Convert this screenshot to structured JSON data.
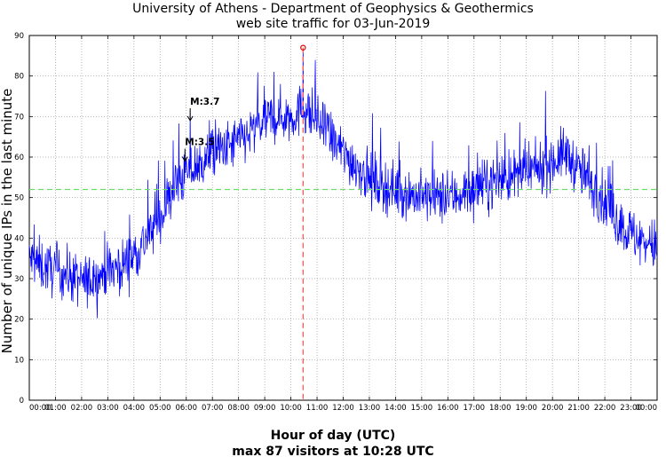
{
  "chart_data": {
    "type": "line",
    "title": "University of Athens - Department of Geophysics & Geothermics",
    "subtitle": "web site traffic for 03-Jun-2019",
    "ylabel": "Number of unique IPs in the last minute",
    "xlabel": "Hour of day (UTC)",
    "footer": "max 87 visitors at 10:28 UTC",
    "xlim": [
      0,
      24
    ],
    "ylim": [
      0,
      90
    ],
    "ytick_values": [
      0,
      10,
      20,
      30,
      40,
      50,
      60,
      70,
      80,
      90
    ],
    "ytick_labels": [
      "0",
      "10",
      "20",
      "30",
      "40",
      "50",
      "60",
      "70",
      "80",
      "90"
    ],
    "xtick_labels": [
      "00:00",
      "01:00",
      "02:00",
      "03:00",
      "04:00",
      "05:00",
      "06:00",
      "07:00",
      "08:00",
      "09:00",
      "10:00",
      "11:00",
      "12:00",
      "13:00",
      "14:00",
      "15:00",
      "16:00",
      "17:00",
      "18:00",
      "19:00",
      "20:00",
      "21:00",
      "22:00",
      "23:00",
      "00:00"
    ],
    "grid": true,
    "average_level": 52,
    "max": {
      "hour": 10.467,
      "value": 87
    },
    "series": [
      {
        "name": "unique IPs per minute (approximate hourly envelope)",
        "color": "#0000ff",
        "x": [
          0,
          0.5,
          1,
          1.5,
          2,
          2.5,
          3,
          3.5,
          4,
          4.5,
          5,
          5.5,
          6,
          6.5,
          7,
          7.5,
          8,
          8.5,
          9,
          9.5,
          10,
          10.5,
          11,
          11.5,
          12,
          12.5,
          13,
          13.5,
          14,
          14.5,
          15,
          15.5,
          16,
          16.5,
          17,
          17.5,
          18,
          18.5,
          19,
          19.5,
          20,
          20.5,
          21,
          21.5,
          22,
          22.5,
          23,
          23.5,
          24
        ],
        "y": [
          35,
          33,
          32,
          31,
          29,
          30,
          32,
          33,
          36,
          40,
          45,
          52,
          56,
          58,
          61,
          62,
          64,
          66,
          69,
          70,
          70,
          72,
          69,
          65,
          61,
          58,
          55,
          53,
          52,
          51,
          50,
          50,
          50,
          51,
          52,
          53,
          55,
          55,
          56,
          57,
          59,
          61,
          57,
          53,
          49,
          44,
          41,
          39,
          38
        ]
      }
    ],
    "annotations": [
      {
        "text": "M:3.5",
        "hour": 5.95,
        "value": 59
      },
      {
        "text": "M:3.7",
        "hour": 6.15,
        "value": 69
      }
    ]
  }
}
